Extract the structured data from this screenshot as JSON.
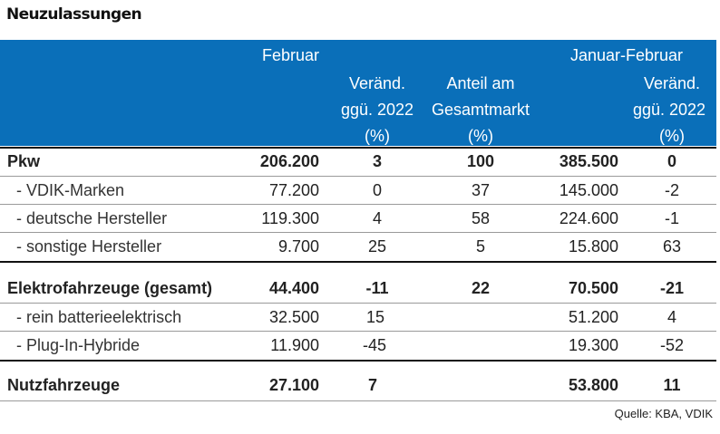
{
  "title": "Neuzulassungen",
  "header": {
    "februar": "Februar",
    "januar_februar": "Januar-Februar",
    "veraend_l1": "Veränd.",
    "veraend_l2": "ggü. 2022",
    "veraend_l3": "(%)",
    "anteil_l1": "Anteil am",
    "anteil_l2": "Gesamtmarkt",
    "anteil_l3": "(%)",
    "veraend2_l1": "Veränd.",
    "veraend2_l2": "ggü. 2022",
    "veraend2_l3": "(%)"
  },
  "rows": [
    {
      "label": "Pkw",
      "feb": "206.200",
      "chg": "3",
      "share": "100",
      "janfeb": "385.500",
      "chg2": "0"
    },
    {
      "label": "- VDIK-Marken",
      "feb": "77.200",
      "chg": "0",
      "share": "37",
      "janfeb": "145.000",
      "chg2": "-2"
    },
    {
      "label": "- deutsche Hersteller",
      "feb": "119.300",
      "chg": "4",
      "share": "58",
      "janfeb": "224.600",
      "chg2": "-1"
    },
    {
      "label": "- sonstige Hersteller",
      "feb": "9.700",
      "chg": "25",
      "share": "5",
      "janfeb": "15.800",
      "chg2": "63"
    },
    {
      "label": "Elektrofahrzeuge (gesamt)",
      "feb": "44.400",
      "chg": "-11",
      "share": "22",
      "janfeb": "70.500",
      "chg2": "-21"
    },
    {
      "label": "- rein batterieelektrisch",
      "feb": "32.500",
      "chg": "15",
      "share": "",
      "janfeb": "51.200",
      "chg2": "4"
    },
    {
      "label": "- Plug-In-Hybride",
      "feb": "11.900",
      "chg": "-45",
      "share": "",
      "janfeb": "19.300",
      "chg2": "-52"
    },
    {
      "label": "Nutzfahrzeuge",
      "feb": "27.100",
      "chg": "7",
      "share": "",
      "janfeb": "53.800",
      "chg2": "11"
    }
  ],
  "source": "Quelle: KBA, VDIK"
}
